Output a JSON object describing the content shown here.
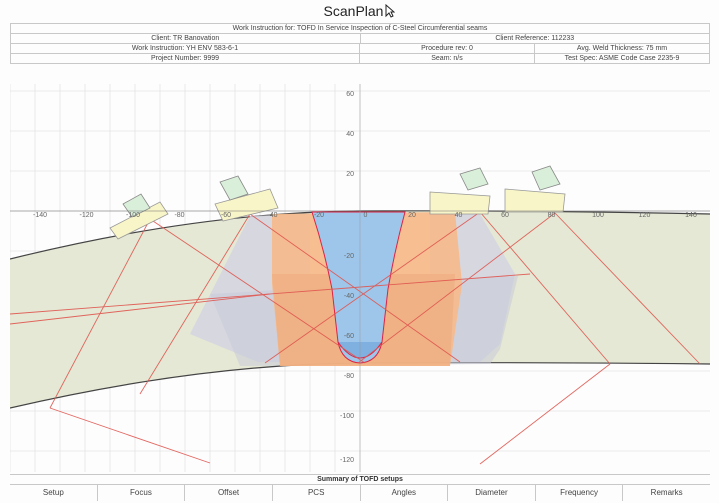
{
  "app": {
    "title": "ScanPlan"
  },
  "header": {
    "work_instruction_title": "Work Instruction for: TOFD In Service Inspection of C-Steel Circumferential seams",
    "client": "Client: TR Banovation",
    "client_reference": "Client Reference: 112233",
    "work_instruction": "Work Instruction: YH ENV 583-6-1",
    "procedure_rev": "Procedure rev: 0",
    "avg_weld_thickness": "Avg. Weld Thickness: 75 mm",
    "project_number": "Project Number: 9999",
    "seam": "Seam: n/s",
    "test_spec": "Test Spec: ASME Code Case 2235-9"
  },
  "plot": {
    "x_ticks": [
      "-140",
      "-120",
      "-100",
      "-80",
      "-60",
      "-40",
      "-20",
      "0",
      "20",
      "40",
      "60",
      "80",
      "100",
      "120",
      "140"
    ],
    "y_ticks": [
      "60",
      "40",
      "20",
      "-20",
      "-40",
      "-60",
      "-80",
      "-100",
      "-120"
    ]
  },
  "summary": {
    "title": "Summary of TOFD setups",
    "tabs": [
      "Setup",
      "Focus",
      "Offset",
      "PCS",
      "Angles",
      "Diameter",
      "Frequency",
      "Remarks"
    ]
  },
  "colors": {
    "pipe_fill": "#e4e8d4",
    "weld_blue": "#9ec6ea",
    "coverage_orange": "#f7b98a",
    "coverage_grey": "#d3d4e0",
    "beam_red": "#e0554f",
    "probe_yellow": "#f8f6c8",
    "wedge_green": "#d9efd9"
  }
}
